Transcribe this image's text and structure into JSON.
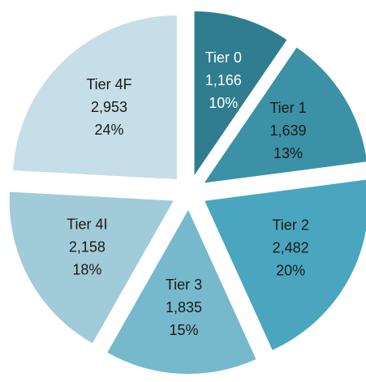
{
  "chart_data": {
    "type": "pie",
    "categories": [
      "Tier 0",
      "Tier 1",
      "Tier 2",
      "Tier 3",
      "Tier 4I",
      "Tier 4F"
    ],
    "values": [
      1166,
      1639,
      2482,
      1835,
      2158,
      2953
    ],
    "value_labels": [
      "1,166",
      "1,639",
      "2,482",
      "1,835",
      "2,158",
      "2,953"
    ],
    "percents": [
      10,
      13,
      20,
      15,
      18,
      24
    ],
    "percent_labels": [
      "10%",
      "13%",
      "20%",
      "15%",
      "18%",
      "24%"
    ],
    "colors": [
      "#2f7d8f",
      "#3b91a6",
      "#4aa6be",
      "#76b9cd",
      "#a2cbda",
      "#c6dee7"
    ],
    "label_colors": [
      "#ffffff",
      "#1a1a1a",
      "#1a1a1a",
      "#1a1a1a",
      "#1a1a1a",
      "#1a1a1a"
    ],
    "exploded": true
  }
}
